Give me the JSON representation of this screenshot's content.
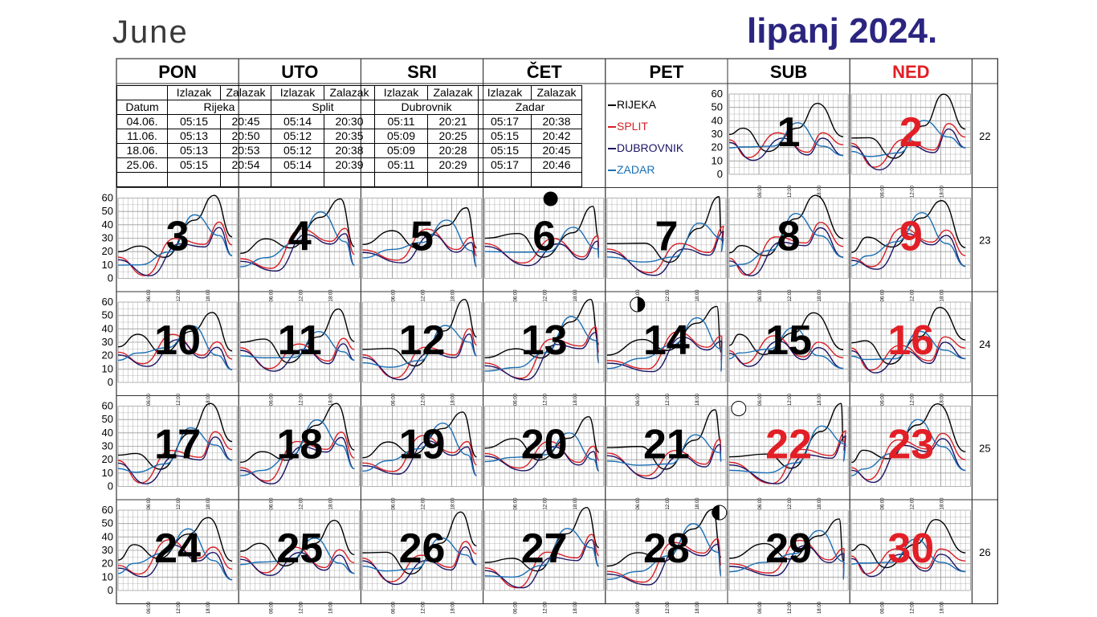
{
  "title_en": "June",
  "title_hr": "lipanj 2024.",
  "weekdays": [
    "PON",
    "UTO",
    "SRI",
    "ČET",
    "PET",
    "SUB",
    "NED"
  ],
  "sun_table": {
    "header_top": [
      "",
      "Izlazak",
      "Zalazak",
      "Izlazak",
      "Zalazak",
      "Izlazak",
      "Zalazak",
      "Izlazak",
      "Zalazak"
    ],
    "header_label": "Datum",
    "cities": [
      "Rijeka",
      "Split",
      "Dubrovnik",
      "Zadar"
    ],
    "rows": [
      [
        "04.06.",
        "05:15",
        "20:45",
        "05:14",
        "20:30",
        "05:11",
        "20:21",
        "05:17",
        "20:38"
      ],
      [
        "11.06.",
        "05:13",
        "20:50",
        "05:12",
        "20:35",
        "05:09",
        "20:25",
        "05:15",
        "20:42"
      ],
      [
        "18.06.",
        "05:13",
        "20:53",
        "05:12",
        "20:38",
        "05:09",
        "20:28",
        "05:15",
        "20:45"
      ],
      [
        "25.06.",
        "05:15",
        "20:54",
        "05:14",
        "20:39",
        "05:11",
        "20:29",
        "05:17",
        "20:46"
      ]
    ]
  },
  "legend": [
    {
      "name": "RIJEKA",
      "color": "#000000"
    },
    {
      "name": "SPLIT",
      "color": "#d81e25"
    },
    {
      "name": "DUBROVNIK",
      "color": "#1c1464"
    },
    {
      "name": "ZADAR",
      "color": "#1a6fb5"
    }
  ],
  "colors": {
    "sunday": "#e21f26",
    "title": "#2b2580",
    "grid": "#9a9a9a",
    "border": "#333333"
  },
  "y_ticks": [
    "0",
    "10",
    "20",
    "30",
    "40",
    "50",
    "60"
  ],
  "x_ticks": [
    "06:00",
    "12:00",
    "18:00"
  ],
  "weeks": [
    {
      "week": "22",
      "days": [
        "",
        "",
        "",
        "",
        "",
        "1",
        "2"
      ]
    },
    {
      "week": "23",
      "days": [
        "3",
        "4",
        "5",
        "6",
        "7",
        "8",
        "9"
      ]
    },
    {
      "week": "24",
      "days": [
        "10",
        "11",
        "12",
        "13",
        "14",
        "15",
        "16"
      ]
    },
    {
      "week": "25",
      "days": [
        "17",
        "18",
        "19",
        "20",
        "21",
        "22",
        "23"
      ]
    },
    {
      "week": "26",
      "days": [
        "24",
        "25",
        "26",
        "27",
        "28",
        "29",
        "30"
      ]
    }
  ],
  "moon_phases": [
    {
      "day": "6",
      "phase": "new"
    },
    {
      "day": "14",
      "phase": "first-quarter"
    },
    {
      "day": "22",
      "phase": "full"
    },
    {
      "day": "28",
      "phase": "last-quarter"
    }
  ],
  "red_days": [
    "2",
    "9",
    "16",
    "22",
    "23",
    "30"
  ],
  "tide_series": {
    "RIJEKA": [
      [
        0,
        24
      ],
      [
        4,
        30
      ],
      [
        9,
        18
      ],
      [
        15,
        40
      ],
      [
        19,
        58
      ],
      [
        23,
        28
      ]
    ],
    "SPLIT": [
      [
        0,
        20
      ],
      [
        5,
        8
      ],
      [
        11,
        32
      ],
      [
        17,
        22
      ],
      [
        20,
        36
      ],
      [
        23,
        22
      ]
    ],
    "DUBROVNIK": [
      [
        0,
        18
      ],
      [
        6,
        6
      ],
      [
        12,
        28
      ],
      [
        17,
        20
      ],
      [
        20,
        32
      ],
      [
        23,
        14
      ]
    ],
    "ZADAR": [
      [
        0,
        14
      ],
      [
        4,
        16
      ],
      [
        10,
        22
      ],
      [
        15,
        44
      ],
      [
        20,
        26
      ],
      [
        23,
        14
      ]
    ]
  }
}
